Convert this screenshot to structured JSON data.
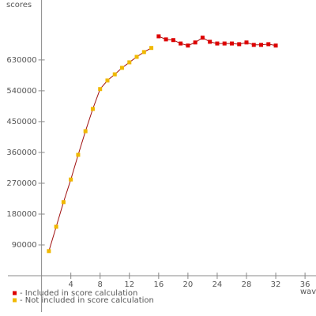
{
  "chart_data": {
    "type": "line",
    "x_label": "wave",
    "y_label": "scores",
    "xlim": [
      -4.6,
      37.5
    ],
    "ylim": [
      -106000,
      805000
    ],
    "xticks": [
      4,
      8,
      12,
      16,
      20,
      24,
      28,
      32,
      36
    ],
    "yticks": [
      90000,
      180000,
      270000,
      360000,
      450000,
      540000,
      630000
    ],
    "line_color": "#a01010",
    "series": [
      {
        "name": "- Included in score calculation",
        "color": "#dd0000",
        "x": [
          16,
          17,
          18,
          19,
          20,
          21,
          22,
          23,
          24,
          25,
          26,
          27,
          28,
          29,
          30,
          31,
          32
        ],
        "values": [
          699000,
          690000,
          688000,
          678000,
          672000,
          681000,
          695000,
          683000,
          678000,
          678000,
          678000,
          676000,
          681000,
          674000,
          674000,
          676000,
          672000
        ]
      },
      {
        "name": "- Not included in score calculation",
        "color": "#f0b800",
        "x": [
          1,
          2,
          3,
          4,
          5,
          6,
          7,
          8,
          9,
          10,
          11,
          12,
          13,
          14,
          15
        ],
        "values": [
          72000,
          143000,
          215000,
          281000,
          353000,
          422000,
          487000,
          545000,
          570000,
          588000,
          607000,
          623000,
          639000,
          653000,
          665000
        ]
      }
    ]
  }
}
